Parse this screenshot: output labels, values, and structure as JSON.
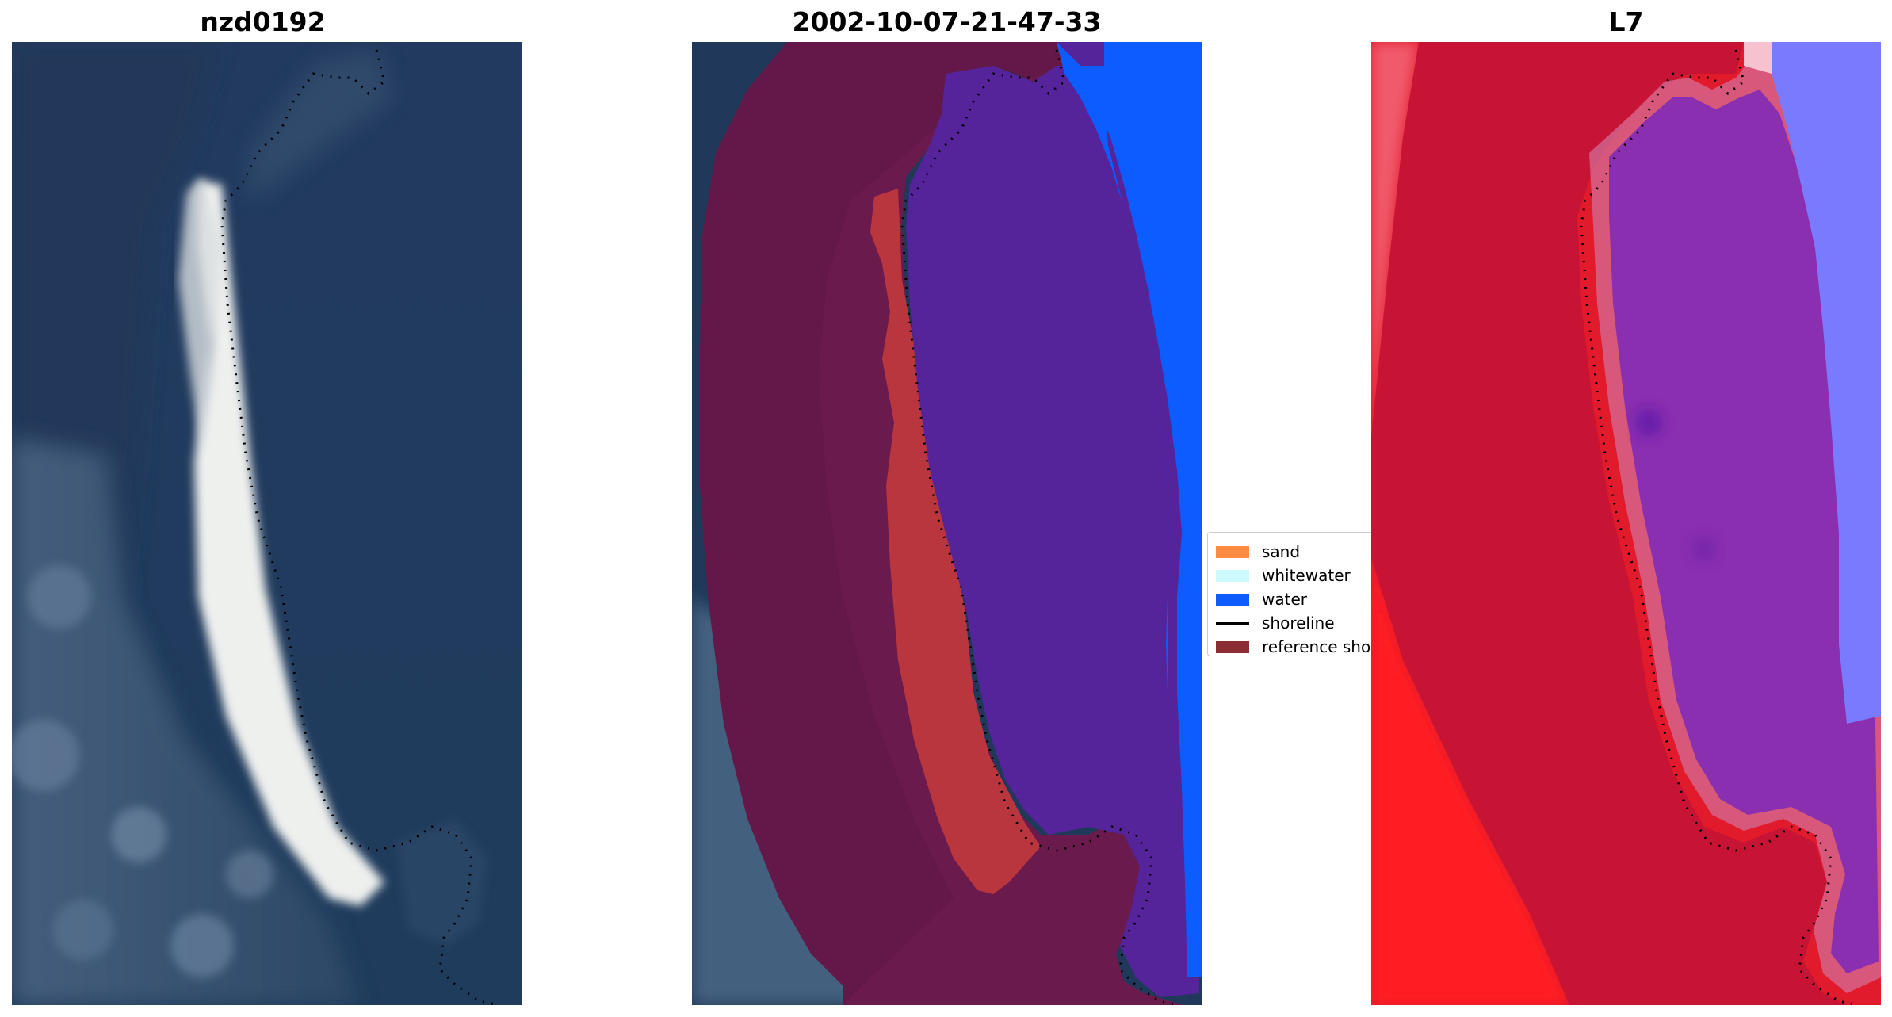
{
  "panels": [
    {
      "title": "nzd0192"
    },
    {
      "title": "2002-10-07-21-47-33"
    },
    {
      "title": "L7"
    }
  ],
  "legend": {
    "items": [
      {
        "label": "sand",
        "color": "#ff8c42",
        "kind": "patch"
      },
      {
        "label": "whitewater",
        "color": "#ccf9ff",
        "kind": "patch"
      },
      {
        "label": "water",
        "color": "#0d5cff",
        "kind": "patch"
      },
      {
        "label": "shoreline",
        "color": "#000000",
        "kind": "line"
      },
      {
        "label": "reference shoreline buffer",
        "color": "#8b2e33",
        "kind": "patch"
      }
    ]
  },
  "colors": {
    "rgb_water": "#1c3a5e",
    "rgb_sand": "#f4f2ee",
    "class_buffer": "#6b1a4d",
    "class_water": "#55229a",
    "index_land": "#e0102a",
    "index_water": "#8a2fb0",
    "index_open_water": "#7a7aff"
  }
}
